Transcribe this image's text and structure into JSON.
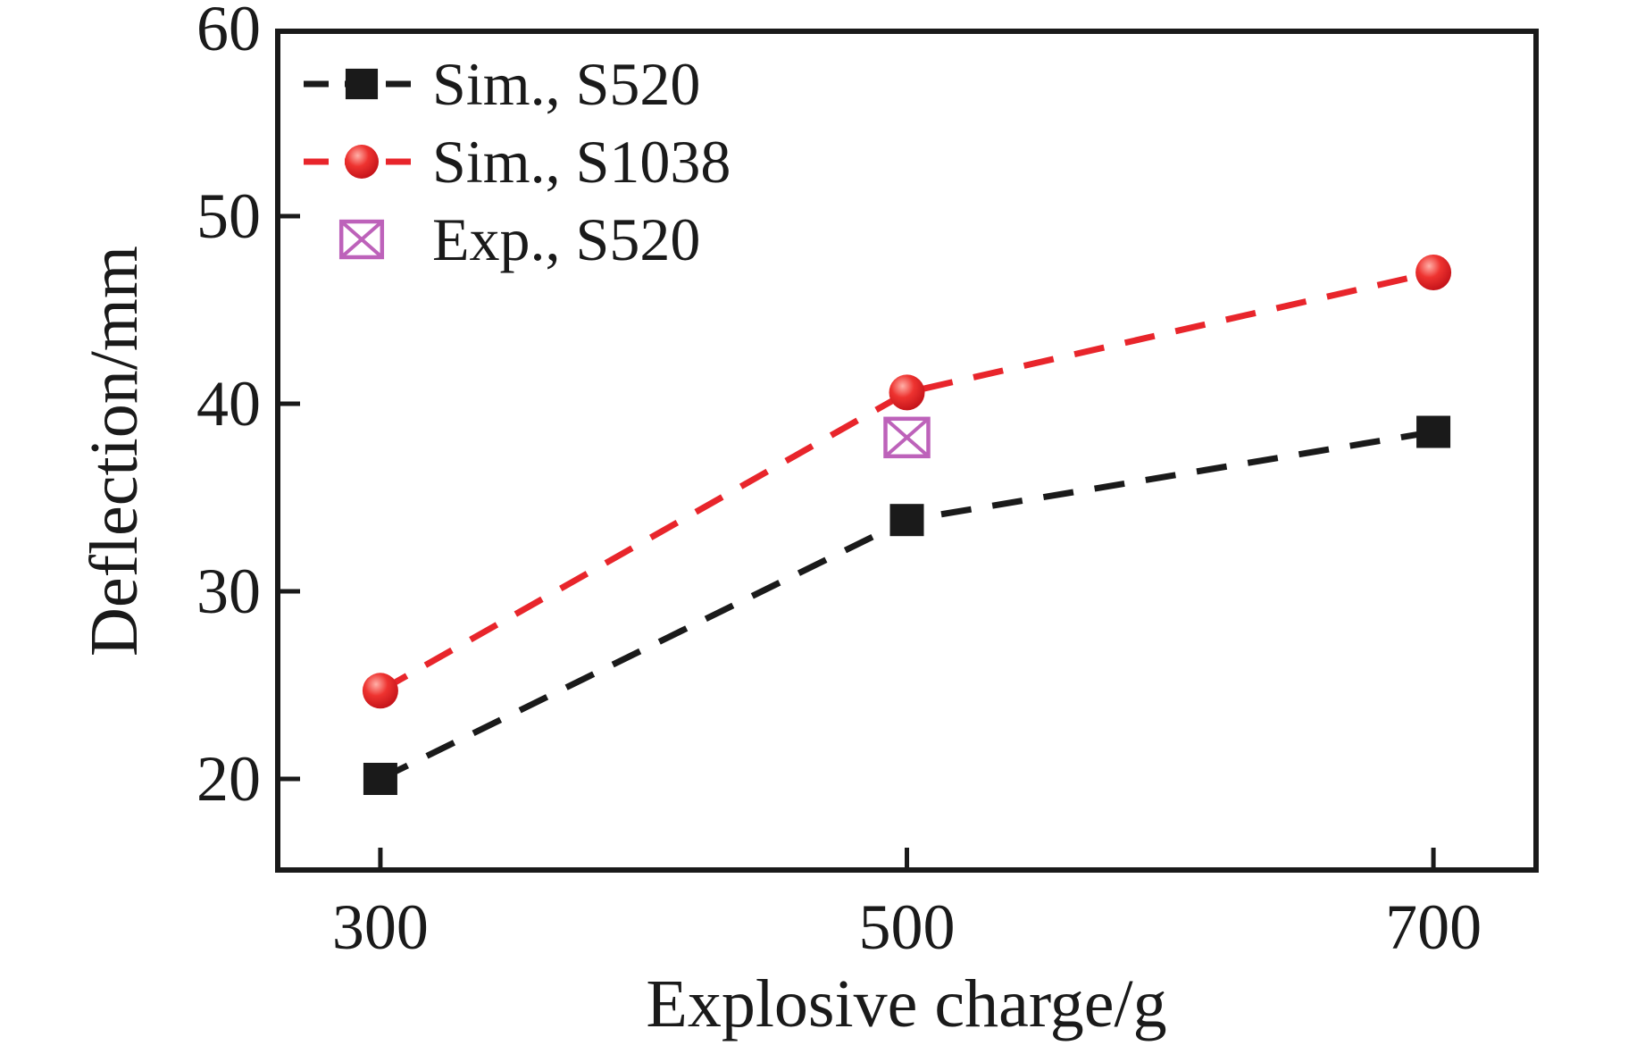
{
  "figure": {
    "background": "#ffffff",
    "text_color": "#1a1a1a",
    "frame_color": "#1a1a1a"
  },
  "chart_data": {
    "type": "line",
    "title": "",
    "xlabel": "Explosive charge/g",
    "ylabel": "Deflection/mm",
    "xlim": [
      260,
      740
    ],
    "ylim": [
      15,
      60
    ],
    "x_ticks": [
      300,
      500,
      700
    ],
    "y_ticks": [
      20,
      30,
      40,
      50,
      60
    ],
    "grid": false,
    "legend_position": "top-left",
    "series": [
      {
        "name": "Sim., S520",
        "marker": "square",
        "line_style": "dashed",
        "color": "#1a1a1a",
        "x": [
          300,
          500,
          700
        ],
        "values": [
          20.0,
          33.8,
          38.5
        ]
      },
      {
        "name": "Sim., S1038",
        "marker": "circle",
        "line_style": "dashed",
        "color": "#e8252b",
        "x": [
          300,
          500,
          700
        ],
        "values": [
          24.7,
          40.6,
          47.0
        ]
      },
      {
        "name": "Exp., S520",
        "marker": "crossed-square",
        "line_style": "none",
        "color": "#bd62ba",
        "x": [
          500
        ],
        "values": [
          38.2
        ]
      }
    ]
  }
}
